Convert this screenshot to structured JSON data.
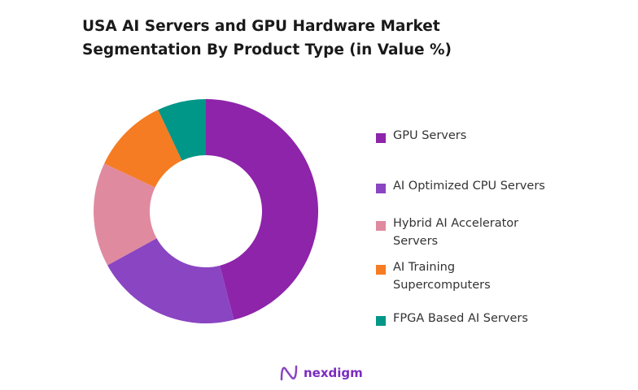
{
  "chart_data": {
    "type": "pie",
    "donut": true,
    "title": "USA AI Servers and GPU Hardware Market Segmentation By Product Type (in Value %)",
    "title_lines": [
      "USA AI Servers and GPU Hardware Market",
      "Segmentation By Product Type (in Value %)"
    ],
    "categories": [
      "GPU Servers",
      "AI Optimized CPU Servers",
      "Hybrid AI Accelerator Servers",
      "AI Training Supercomputers",
      "FPGA Based AI Servers"
    ],
    "legend_lines": [
      [
        "GPU Servers"
      ],
      [
        "AI Optimized CPU Servers"
      ],
      [
        "Hybrid AI Accelerator",
        "Servers"
      ],
      [
        "AI Training",
        "Supercomputers"
      ],
      [
        "FPGA Based AI Servers"
      ]
    ],
    "values": [
      46,
      21,
      15,
      11,
      7
    ],
    "colors": [
      "#8e24aa",
      "#8a45c2",
      "#e08aa0",
      "#f57c22",
      "#009688"
    ],
    "legend_placement": "right"
  },
  "brand": {
    "name": "nexdigm",
    "color": "#7b2cbf"
  }
}
